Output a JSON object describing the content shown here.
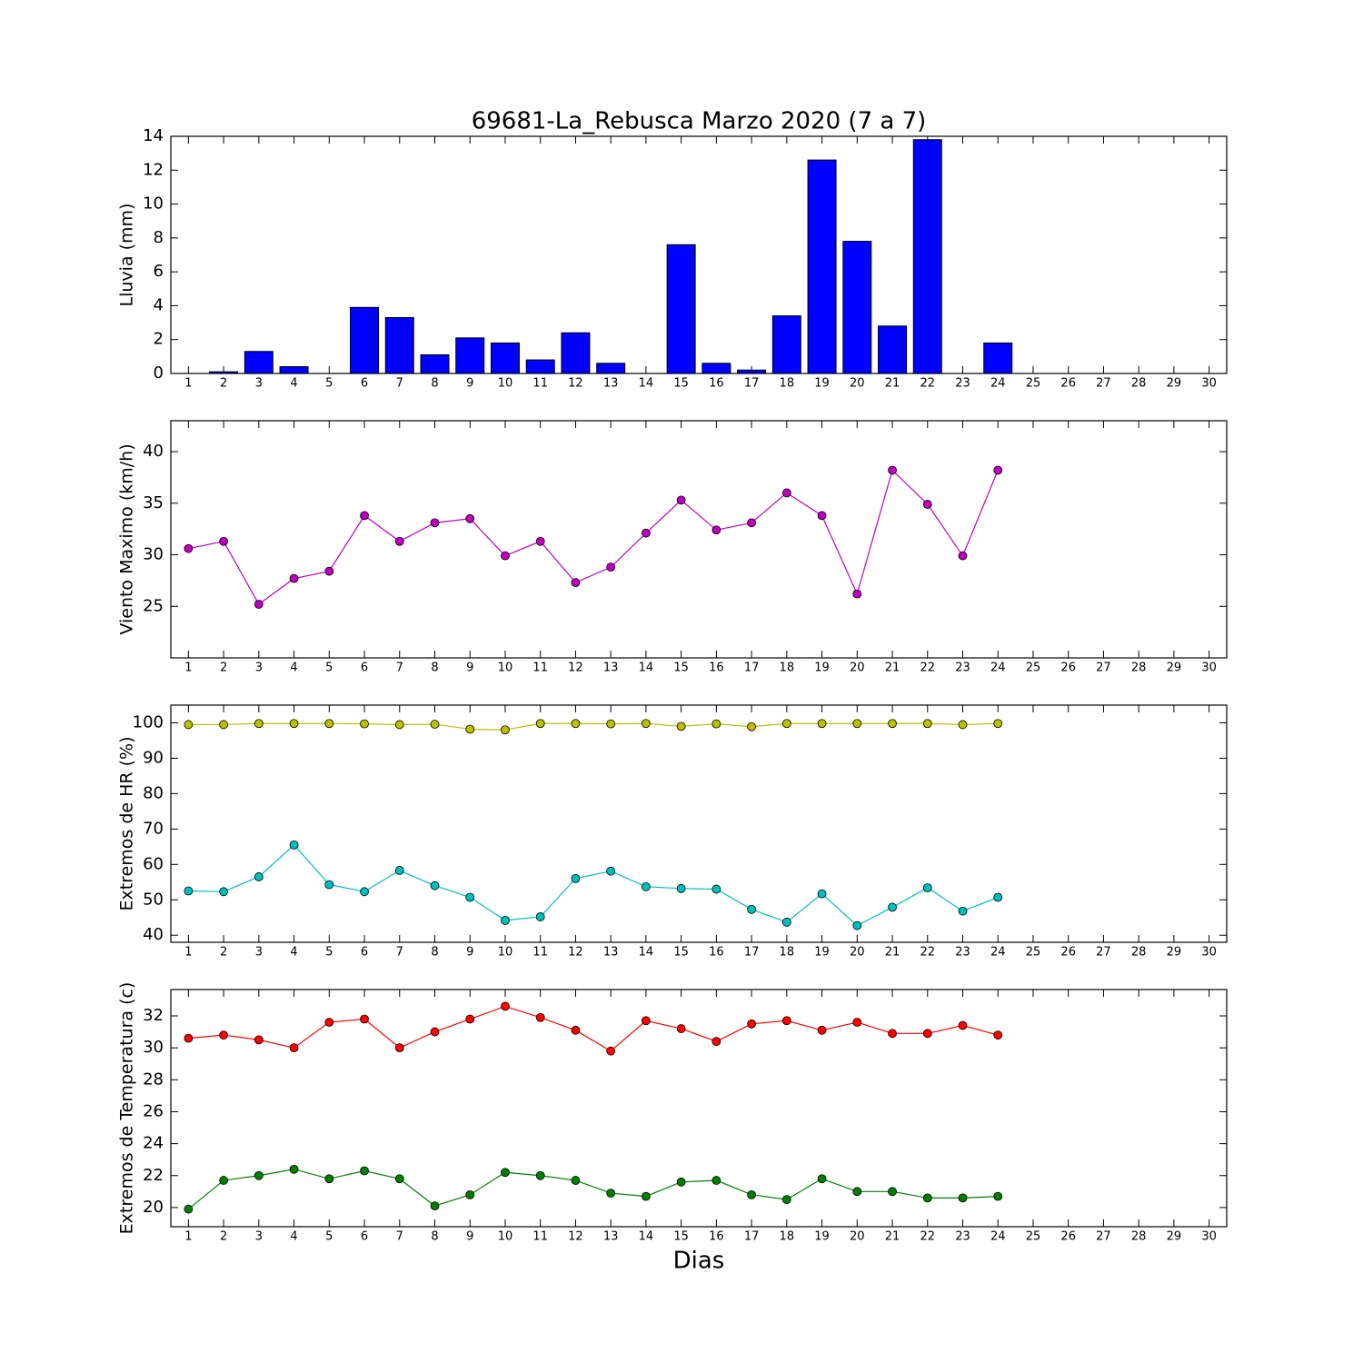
{
  "chart_data": [
    {
      "type": "bar",
      "title": "69681-La_Rebusca Marzo 2020  (7 a 7)",
      "ylabel": "Lluvia (mm)",
      "x": [
        1,
        2,
        3,
        4,
        5,
        6,
        7,
        8,
        9,
        10,
        11,
        12,
        13,
        14,
        15,
        16,
        17,
        18,
        19,
        20,
        21,
        22,
        23,
        24
      ],
      "values": [
        0,
        0.1,
        1.3,
        0.4,
        0,
        3.9,
        3.3,
        1.1,
        2.1,
        1.8,
        0.8,
        2.4,
        0.6,
        0,
        7.6,
        0.6,
        0.2,
        3.4,
        12.6,
        7.8,
        2.8,
        13.8,
        0,
        1.8
      ],
      "color": "#0000ff",
      "xlim": [
        0.5,
        30.5
      ],
      "xticks": [
        1,
        2,
        3,
        4,
        5,
        6,
        7,
        8,
        9,
        10,
        11,
        12,
        13,
        14,
        15,
        16,
        17,
        18,
        19,
        20,
        21,
        22,
        23,
        24,
        25,
        26,
        27,
        28,
        29,
        30
      ],
      "ylim": [
        0,
        14
      ],
      "yticks": [
        0,
        2,
        4,
        6,
        8,
        10,
        12,
        14
      ]
    },
    {
      "type": "line",
      "ylabel": "Viento Maximo (km/h)",
      "x": [
        1,
        2,
        3,
        4,
        5,
        6,
        7,
        8,
        9,
        10,
        11,
        12,
        13,
        14,
        15,
        16,
        17,
        18,
        19,
        20,
        21,
        22,
        23,
        24
      ],
      "series": [
        {
          "color": "#bf00bf",
          "values": [
            30.6,
            31.3,
            25.2,
            27.7,
            28.4,
            33.8,
            31.3,
            33.1,
            33.5,
            29.9,
            31.3,
            27.3,
            28.8,
            32.1,
            35.3,
            32.4,
            33.1,
            36,
            33.8,
            26.2,
            38.2,
            34.9,
            29.9,
            38.2
          ]
        }
      ],
      "xlim": [
        0.5,
        30.5
      ],
      "xticks": [
        1,
        2,
        3,
        4,
        5,
        6,
        7,
        8,
        9,
        10,
        11,
        12,
        13,
        14,
        15,
        16,
        17,
        18,
        19,
        20,
        21,
        22,
        23,
        24,
        25,
        26,
        27,
        28,
        29,
        30
      ],
      "ylim": [
        20,
        43
      ],
      "yticks": [
        25,
        30,
        35,
        40
      ]
    },
    {
      "type": "line",
      "ylabel": "Extremos de HR (%)",
      "x": [
        1,
        2,
        3,
        4,
        5,
        6,
        7,
        8,
        9,
        10,
        11,
        12,
        13,
        14,
        15,
        16,
        17,
        18,
        19,
        20,
        21,
        22,
        23,
        24
      ],
      "series": [
        {
          "color": "#bfbf00",
          "values": [
            99.5,
            99.5,
            99.8,
            99.8,
            99.8,
            99.7,
            99.5,
            99.6,
            98.2,
            98,
            99.8,
            99.8,
            99.7,
            99.8,
            99,
            99.7,
            98.9,
            99.8,
            99.8,
            99.8,
            99.8,
            99.8,
            99.5,
            99.8
          ]
        },
        {
          "color": "#00bfbf",
          "values": [
            52.5,
            52.3,
            56.5,
            65.5,
            54.3,
            52.3,
            58.3,
            54,
            50.7,
            44.2,
            45.2,
            56,
            58.1,
            53.7,
            53.2,
            53,
            47.3,
            43.7,
            51.7,
            42.7,
            47.9,
            53.4,
            46.8,
            50.7
          ]
        }
      ],
      "xlim": [
        0.5,
        30.5
      ],
      "xticks": [
        1,
        2,
        3,
        4,
        5,
        6,
        7,
        8,
        9,
        10,
        11,
        12,
        13,
        14,
        15,
        16,
        17,
        18,
        19,
        20,
        21,
        22,
        23,
        24,
        25,
        26,
        27,
        28,
        29,
        30
      ],
      "ylim": [
        38,
        105
      ],
      "yticks": [
        40,
        50,
        60,
        70,
        80,
        90,
        100
      ]
    },
    {
      "type": "line",
      "ylabel": "Extremos de Temperatura (c)",
      "xlabel": "Dias",
      "x": [
        1,
        2,
        3,
        4,
        5,
        6,
        7,
        8,
        9,
        10,
        11,
        12,
        13,
        14,
        15,
        16,
        17,
        18,
        19,
        20,
        21,
        22,
        23,
        24
      ],
      "series": [
        {
          "color": "#ff0000",
          "values": [
            30.6,
            30.8,
            30.5,
            30,
            31.6,
            31.8,
            30,
            31,
            31.8,
            32.6,
            31.9,
            31.1,
            29.8,
            31.7,
            31.2,
            30.4,
            31.5,
            31.7,
            31.1,
            31.6,
            30.9,
            30.9,
            31.4,
            30.8
          ]
        },
        {
          "color": "#008000",
          "values": [
            19.9,
            21.7,
            22,
            22.4,
            21.8,
            22.3,
            21.8,
            20.1,
            20.8,
            22.2,
            22,
            21.7,
            20.9,
            20.7,
            21.6,
            21.7,
            20.8,
            20.5,
            21.8,
            21,
            21,
            20.6,
            20.6,
            20.7
          ]
        }
      ],
      "xlim": [
        0.5,
        30.5
      ],
      "xticks": [
        1,
        2,
        3,
        4,
        5,
        6,
        7,
        8,
        9,
        10,
        11,
        12,
        13,
        14,
        15,
        16,
        17,
        18,
        19,
        20,
        21,
        22,
        23,
        24,
        25,
        26,
        27,
        28,
        29,
        30
      ],
      "ylim": [
        18.8,
        33.65
      ],
      "yticks": [
        20,
        22,
        24,
        26,
        28,
        30,
        32
      ]
    }
  ]
}
